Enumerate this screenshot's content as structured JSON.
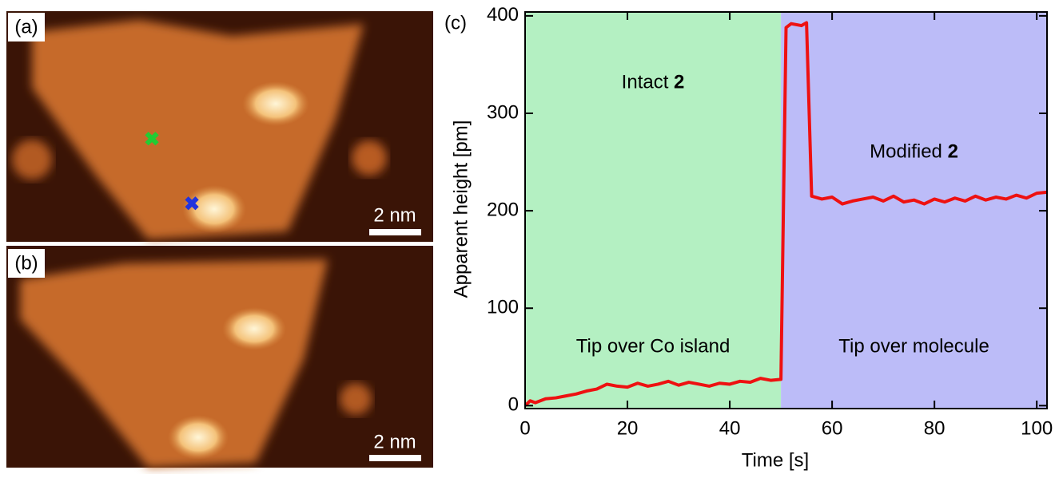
{
  "images": [
    {
      "label": "(a)",
      "scale_bar": "2 nm"
    },
    {
      "label": "(b)",
      "scale_bar": "2 nm"
    }
  ],
  "chart_data": {
    "type": "line",
    "panel_label": "(c)",
    "x_label": "Time [s]",
    "y_label": "Apparent height [pm]",
    "xlim": [
      0,
      102
    ],
    "ylim": [
      -3,
      404
    ],
    "xticks": [
      0,
      20,
      40,
      60,
      80,
      100
    ],
    "yticks": [
      0,
      100,
      200,
      300,
      400
    ],
    "regions": [
      {
        "start": 0,
        "end": 50,
        "color": "#b4f0c2",
        "label": {
          "text": "Intact",
          "bold": "2"
        },
        "note": "Tip over Co island"
      },
      {
        "start": 50,
        "end": 102,
        "color": "#bcbcf8",
        "label": {
          "text": "Modified",
          "bold": "2"
        },
        "note": "Tip over molecule"
      }
    ],
    "x": [
      0,
      1,
      2,
      4,
      6,
      8,
      10,
      12,
      14,
      16,
      18,
      20,
      22,
      24,
      26,
      28,
      30,
      32,
      34,
      36,
      38,
      40,
      42,
      44,
      46,
      48,
      50,
      51,
      52,
      54,
      55,
      56,
      58,
      60,
      62,
      64,
      66,
      68,
      70,
      72,
      74,
      76,
      78,
      80,
      82,
      84,
      86,
      88,
      90,
      92,
      94,
      96,
      98,
      100,
      102
    ],
    "series": [
      {
        "color": "#ee1111",
        "values": [
          0,
          5,
          3,
          7,
          8,
          10,
          12,
          15,
          17,
          22,
          20,
          19,
          23,
          20,
          22,
          25,
          21,
          24,
          22,
          20,
          23,
          22,
          25,
          24,
          28,
          26,
          27,
          388,
          392,
          390,
          393,
          215,
          212,
          214,
          207,
          210,
          212,
          214,
          210,
          215,
          209,
          211,
          207,
          212,
          209,
          213,
          210,
          215,
          211,
          214,
          212,
          216,
          213,
          218,
          219
        ]
      }
    ]
  }
}
